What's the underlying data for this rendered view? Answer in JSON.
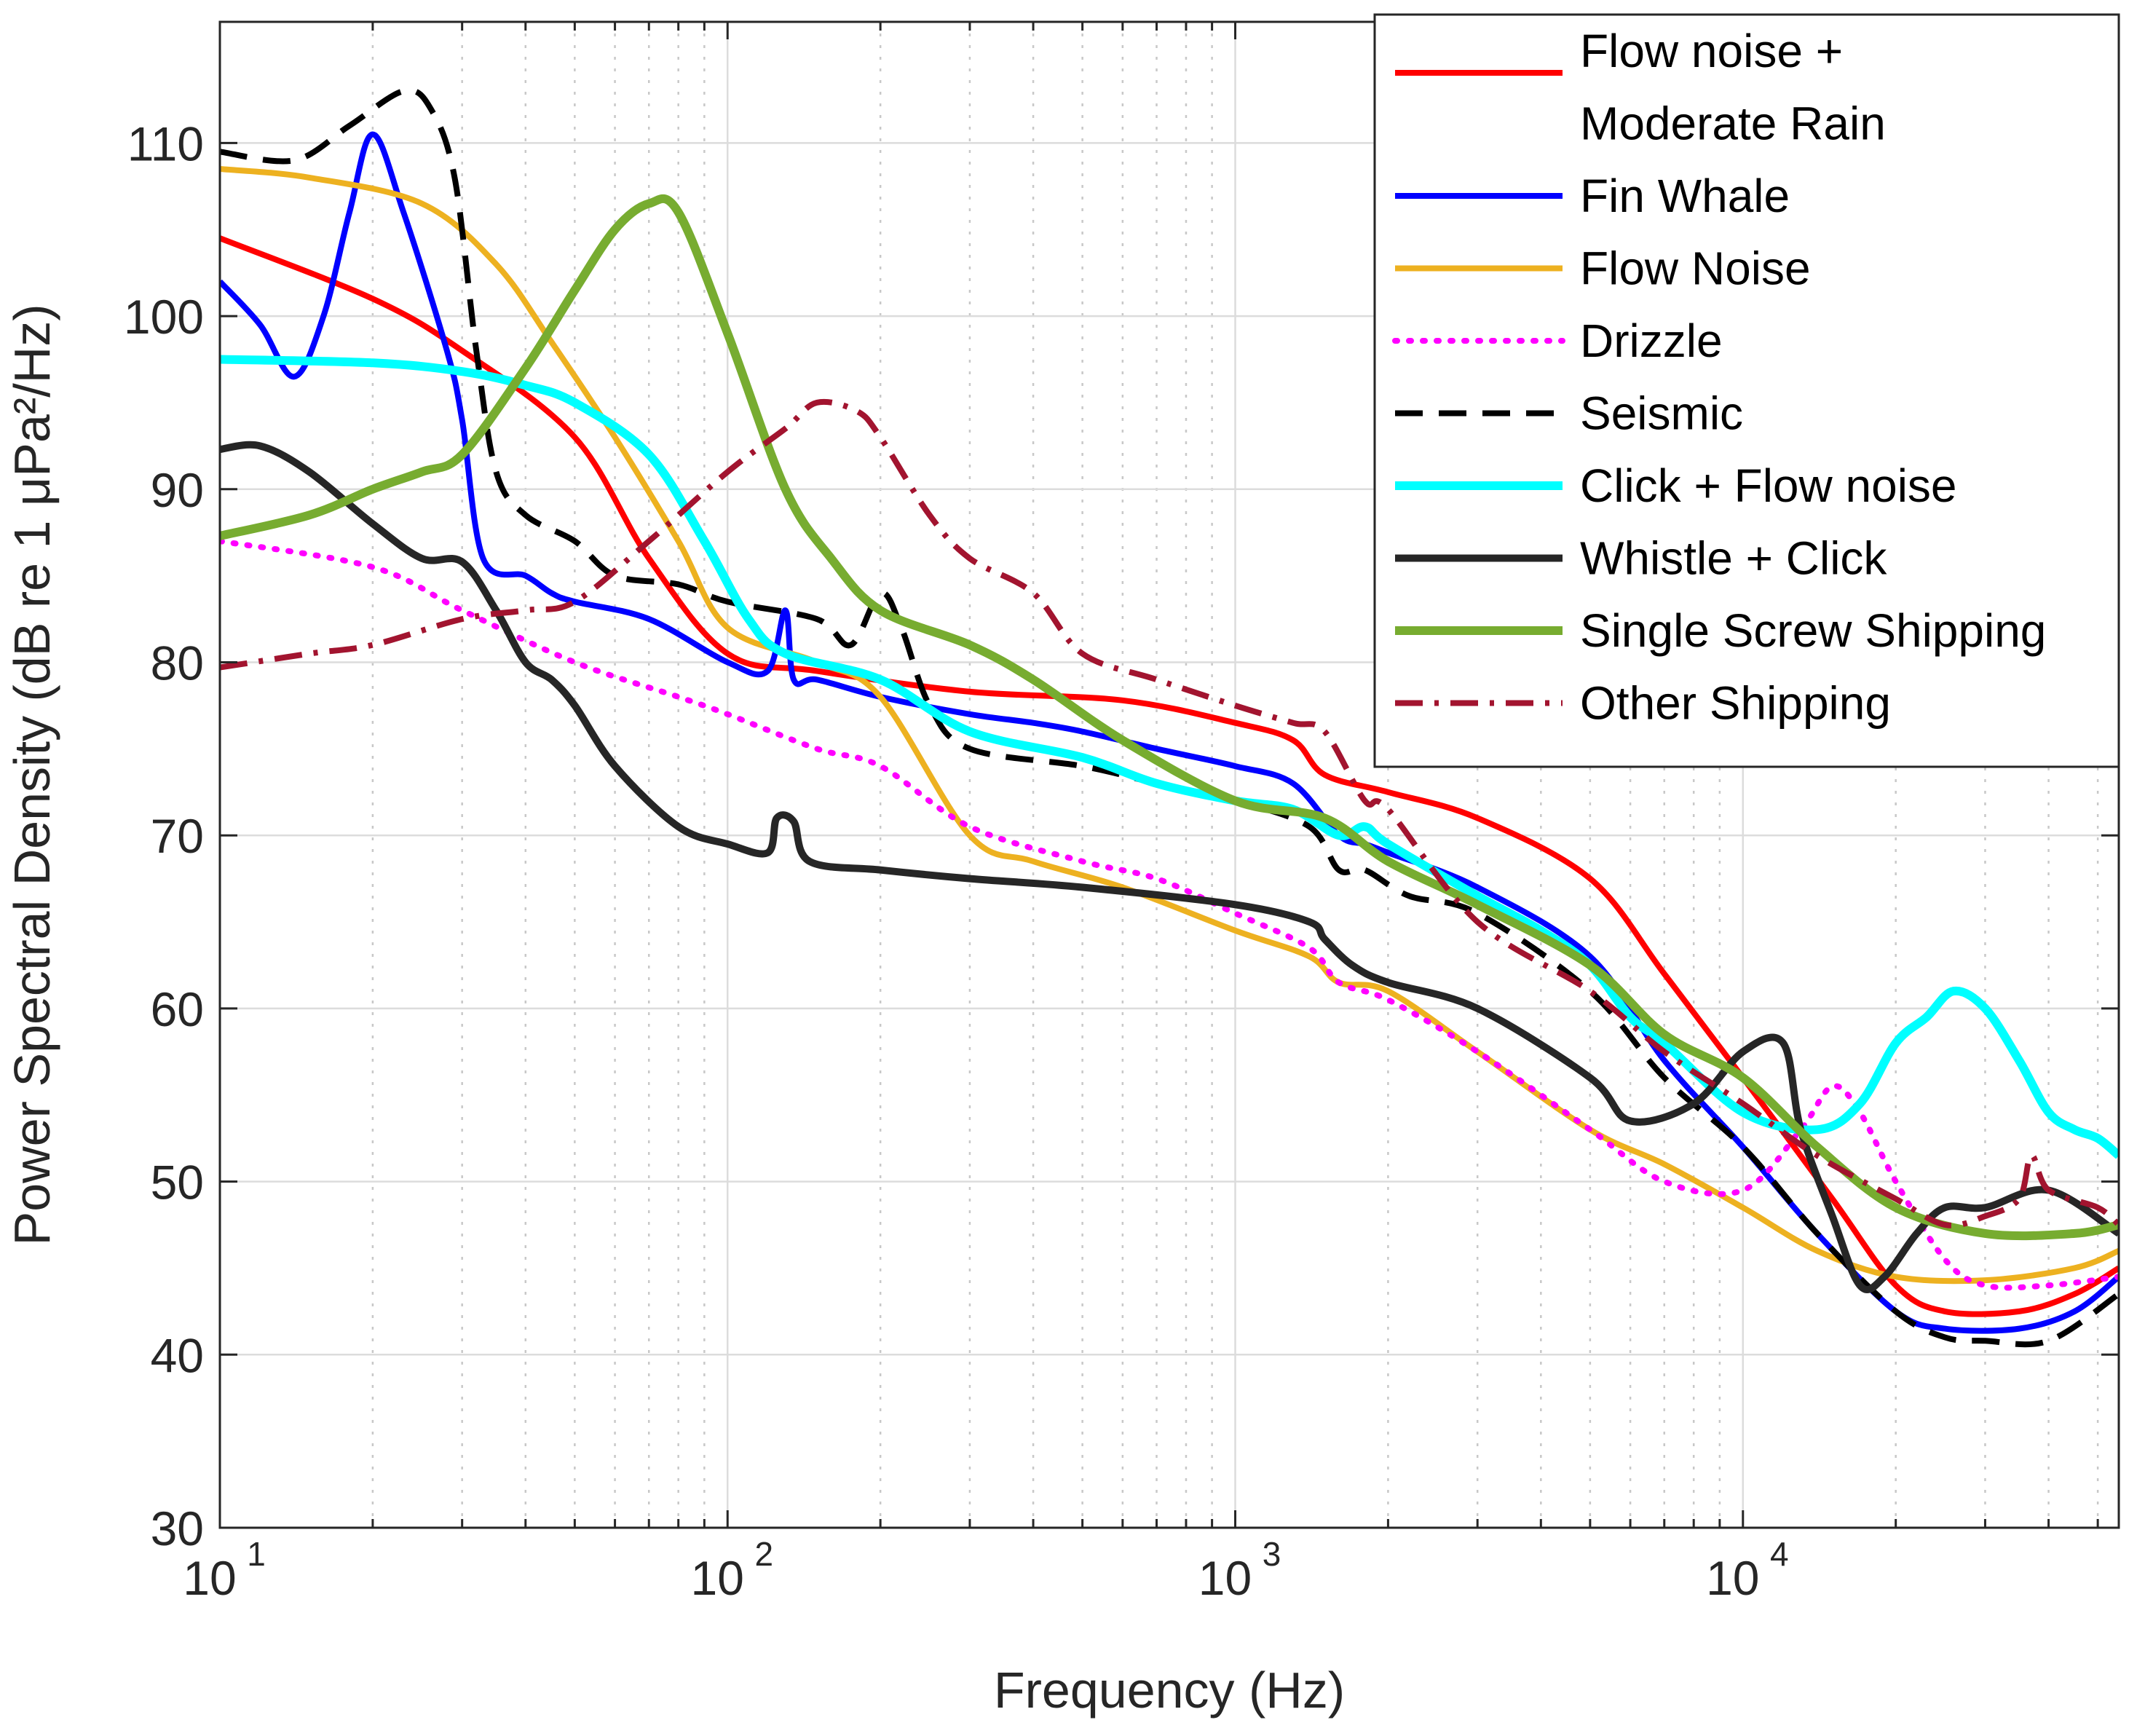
{
  "chart_data": {
    "type": "line",
    "title": "",
    "xlabel": "Frequency (Hz)",
    "ylabel": "Power Spectral Density (dB re 1 μPa²/Hz)",
    "xscale": "log",
    "xlim": [
      10,
      55000
    ],
    "ylim": [
      30,
      117
    ],
    "grid": true,
    "legend_position": "top-right",
    "y_ticks": [
      30,
      40,
      50,
      60,
      70,
      80,
      90,
      100,
      110
    ],
    "y_tick_labels": [
      "30",
      "40",
      "50",
      "60",
      "70",
      "80",
      "90",
      "100",
      "110"
    ],
    "x_ticks": [
      10,
      100,
      1000,
      10000
    ],
    "x_tick_labels": [
      {
        "base": "10",
        "exp": "1"
      },
      {
        "base": "10",
        "exp": "2"
      },
      {
        "base": "10",
        "exp": "3"
      },
      {
        "base": "10",
        "exp": "4"
      }
    ],
    "series": [
      {
        "name": "Flow noise + Moderate Rain",
        "legend_lines": [
          "Flow noise +",
          "Moderate Rain"
        ],
        "color": "#ff0000",
        "dash": "solid",
        "width": 8,
        "points": [
          [
            10,
            104.5
          ],
          [
            20,
            101
          ],
          [
            30,
            98
          ],
          [
            50,
            93
          ],
          [
            70,
            86
          ],
          [
            100,
            80.5
          ],
          [
            150,
            79.5
          ],
          [
            300,
            78.3
          ],
          [
            600,
            77.8
          ],
          [
            1000,
            76.5
          ],
          [
            1300,
            75.5
          ],
          [
            1500,
            73.5
          ],
          [
            2000,
            72.5
          ],
          [
            3000,
            71
          ],
          [
            5000,
            67.5
          ],
          [
            7000,
            62
          ],
          [
            10000,
            56
          ],
          [
            15000,
            49
          ],
          [
            20000,
            44
          ],
          [
            25000,
            42.5
          ],
          [
            35000,
            42.5
          ],
          [
            45000,
            43.5
          ],
          [
            55000,
            45
          ]
        ]
      },
      {
        "name": "Fin Whale",
        "legend_lines": [
          "Fin Whale"
        ],
        "color": "#0000ff",
        "dash": "solid",
        "width": 8,
        "points": [
          [
            10,
            102
          ],
          [
            12,
            99.5
          ],
          [
            14,
            96.5
          ],
          [
            16,
            100
          ],
          [
            18,
            106
          ],
          [
            20,
            110.5
          ],
          [
            23,
            106
          ],
          [
            28,
            98
          ],
          [
            30,
            94
          ],
          [
            33,
            86
          ],
          [
            40,
            85
          ],
          [
            45,
            84
          ],
          [
            50,
            83.5
          ],
          [
            70,
            82.5
          ],
          [
            100,
            80
          ],
          [
            120,
            79.5
          ],
          [
            130,
            83
          ],
          [
            135,
            79
          ],
          [
            150,
            79
          ],
          [
            200,
            78
          ],
          [
            300,
            77
          ],
          [
            400,
            76.5
          ],
          [
            500,
            76
          ],
          [
            700,
            75
          ],
          [
            1000,
            74
          ],
          [
            1300,
            73
          ],
          [
            1600,
            70
          ],
          [
            1800,
            69.5
          ],
          [
            2000,
            69
          ],
          [
            3000,
            67
          ],
          [
            5000,
            63
          ],
          [
            7000,
            57
          ],
          [
            10000,
            52
          ],
          [
            14000,
            47
          ],
          [
            20000,
            42.5
          ],
          [
            25000,
            41.5
          ],
          [
            35000,
            41.5
          ],
          [
            45000,
            42.5
          ],
          [
            55000,
            44.5
          ]
        ]
      },
      {
        "name": "Flow Noise",
        "legend_lines": [
          "Flow Noise"
        ],
        "color": "#edb120",
        "dash": "solid",
        "width": 8,
        "points": [
          [
            10,
            108.5
          ],
          [
            15,
            108
          ],
          [
            25,
            106.5
          ],
          [
            35,
            103
          ],
          [
            45,
            98.5
          ],
          [
            60,
            93
          ],
          [
            80,
            87
          ],
          [
            100,
            82
          ],
          [
            150,
            80
          ],
          [
            200,
            78
          ],
          [
            300,
            70
          ],
          [
            400,
            68.5
          ],
          [
            600,
            67
          ],
          [
            1000,
            64.5
          ],
          [
            1400,
            63
          ],
          [
            1600,
            61.5
          ],
          [
            2000,
            61
          ],
          [
            3000,
            57.5
          ],
          [
            5000,
            53
          ],
          [
            7000,
            51
          ],
          [
            10000,
            48.5
          ],
          [
            14000,
            46
          ],
          [
            20000,
            44.5
          ],
          [
            30000,
            44.3
          ],
          [
            45000,
            45
          ],
          [
            55000,
            46
          ]
        ]
      },
      {
        "name": "Drizzle",
        "legend_lines": [
          "Drizzle"
        ],
        "color": "#ff00ff",
        "dash": "dot",
        "width": 8,
        "points": [
          [
            10,
            87
          ],
          [
            20,
            85.5
          ],
          [
            30,
            83
          ],
          [
            50,
            80
          ],
          [
            80,
            78
          ],
          [
            100,
            77
          ],
          [
            150,
            75
          ],
          [
            200,
            74
          ],
          [
            300,
            70.5
          ],
          [
            500,
            68.5
          ],
          [
            700,
            67.5
          ],
          [
            1000,
            65.5
          ],
          [
            1400,
            63.5
          ],
          [
            1600,
            61.5
          ],
          [
            2000,
            60.5
          ],
          [
            3000,
            57.5
          ],
          [
            5000,
            53
          ],
          [
            7000,
            50
          ],
          [
            10000,
            49.5
          ],
          [
            13000,
            53
          ],
          [
            15000,
            55.5
          ],
          [
            17000,
            54
          ],
          [
            20000,
            50
          ],
          [
            25000,
            45.5
          ],
          [
            30000,
            44
          ],
          [
            40000,
            44
          ],
          [
            55000,
            44.5
          ]
        ]
      },
      {
        "name": "Seismic",
        "legend_lines": [
          "Seismic"
        ],
        "color": "#000000",
        "dash": "dash",
        "width": 8,
        "points": [
          [
            10,
            109.5
          ],
          [
            14,
            109
          ],
          [
            18,
            111
          ],
          [
            23,
            113
          ],
          [
            26,
            112
          ],
          [
            29,
            108
          ],
          [
            32,
            98
          ],
          [
            35,
            91
          ],
          [
            40,
            88.5
          ],
          [
            50,
            87
          ],
          [
            60,
            85
          ],
          [
            80,
            84.5
          ],
          [
            100,
            83.5
          ],
          [
            150,
            82.5
          ],
          [
            175,
            81
          ],
          [
            200,
            84
          ],
          [
            220,
            82
          ],
          [
            250,
            77.5
          ],
          [
            300,
            75
          ],
          [
            500,
            74
          ],
          [
            700,
            73
          ],
          [
            1000,
            72
          ],
          [
            1400,
            70.5
          ],
          [
            1600,
            68
          ],
          [
            1800,
            68
          ],
          [
            2200,
            66.5
          ],
          [
            3000,
            65.5
          ],
          [
            5000,
            61
          ],
          [
            7000,
            56
          ],
          [
            10000,
            52
          ],
          [
            14000,
            47
          ],
          [
            20000,
            42.5
          ],
          [
            25000,
            41
          ],
          [
            30000,
            40.8
          ],
          [
            40000,
            40.8
          ],
          [
            55000,
            43.5
          ]
        ]
      },
      {
        "name": "Click + Flow noise",
        "legend_lines": [
          "Click + Flow noise"
        ],
        "color": "#00ffff",
        "dash": "solid",
        "width": 12,
        "points": [
          [
            10,
            97.5
          ],
          [
            20,
            97.3
          ],
          [
            30,
            96.8
          ],
          [
            40,
            96
          ],
          [
            50,
            95
          ],
          [
            70,
            92
          ],
          [
            90,
            87
          ],
          [
            110,
            82.5
          ],
          [
            130,
            80.5
          ],
          [
            200,
            79
          ],
          [
            300,
            76
          ],
          [
            500,
            74.5
          ],
          [
            700,
            73
          ],
          [
            1000,
            72
          ],
          [
            1300,
            71.5
          ],
          [
            1600,
            70
          ],
          [
            1800,
            70.5
          ],
          [
            2000,
            69.5
          ],
          [
            3000,
            66.5
          ],
          [
            4000,
            64.5
          ],
          [
            5000,
            62.5
          ],
          [
            6000,
            59.5
          ],
          [
            7000,
            58
          ],
          [
            10000,
            54
          ],
          [
            14000,
            53
          ],
          [
            17000,
            54.5
          ],
          [
            20000,
            58
          ],
          [
            23000,
            59.5
          ],
          [
            26000,
            61
          ],
          [
            30000,
            60
          ],
          [
            35000,
            57
          ],
          [
            40000,
            54
          ],
          [
            45000,
            53
          ],
          [
            50000,
            52.5
          ],
          [
            55000,
            51.5
          ]
        ]
      },
      {
        "name": "Whistle + Click",
        "legend_lines": [
          " Whistle + Click"
        ],
        "color": "#262626",
        "dash": "solid",
        "width": 10,
        "points": [
          [
            10,
            92.3
          ],
          [
            12,
            92.5
          ],
          [
            15,
            91
          ],
          [
            20,
            88
          ],
          [
            25,
            86
          ],
          [
            30,
            85.8
          ],
          [
            35,
            83
          ],
          [
            40,
            80
          ],
          [
            45,
            79
          ],
          [
            50,
            77.5
          ],
          [
            60,
            74
          ],
          [
            80,
            70.5
          ],
          [
            100,
            69.5
          ],
          [
            120,
            69
          ],
          [
            125,
            71
          ],
          [
            135,
            70.8
          ],
          [
            145,
            68.5
          ],
          [
            200,
            68
          ],
          [
            300,
            67.5
          ],
          [
            500,
            67
          ],
          [
            1000,
            66
          ],
          [
            1400,
            65
          ],
          [
            1500,
            64
          ],
          [
            1700,
            62.5
          ],
          [
            2000,
            61.5
          ],
          [
            3000,
            60
          ],
          [
            5000,
            56
          ],
          [
            6000,
            53.5
          ],
          [
            8000,
            54.5
          ],
          [
            10000,
            57.5
          ],
          [
            12000,
            58
          ],
          [
            13000,
            53
          ],
          [
            15000,
            48
          ],
          [
            17000,
            44
          ],
          [
            19000,
            44.5
          ],
          [
            22000,
            47
          ],
          [
            25000,
            48.5
          ],
          [
            30000,
            48.5
          ],
          [
            40000,
            49.5
          ],
          [
            55000,
            47
          ]
        ]
      },
      {
        "name": "Single Screw Shipping",
        "legend_lines": [
          "Single Screw Shipping"
        ],
        "color": "#77ac30",
        "dash": "solid",
        "width": 12,
        "points": [
          [
            10,
            87.3
          ],
          [
            15,
            88.5
          ],
          [
            20,
            90
          ],
          [
            25,
            91
          ],
          [
            30,
            92
          ],
          [
            40,
            97
          ],
          [
            50,
            101.5
          ],
          [
            60,
            105
          ],
          [
            70,
            106.5
          ],
          [
            80,
            106
          ],
          [
            100,
            99
          ],
          [
            130,
            90
          ],
          [
            160,
            86
          ],
          [
            200,
            83
          ],
          [
            300,
            81
          ],
          [
            400,
            79
          ],
          [
            600,
            75.5
          ],
          [
            1000,
            72
          ],
          [
            1500,
            71
          ],
          [
            2000,
            68.5
          ],
          [
            3000,
            66
          ],
          [
            5000,
            62.5
          ],
          [
            7000,
            58.5
          ],
          [
            10000,
            56
          ],
          [
            14000,
            52
          ],
          [
            20000,
            48.5
          ],
          [
            30000,
            47
          ],
          [
            45000,
            47
          ],
          [
            55000,
            47.5
          ]
        ]
      },
      {
        "name": "Other Shipping",
        "legend_lines": [
          "Other Shipping"
        ],
        "color": "#a2142f",
        "dash": "dashdot",
        "width": 8,
        "points": [
          [
            10,
            79.7
          ],
          [
            15,
            80.5
          ],
          [
            20,
            81
          ],
          [
            30,
            82.5
          ],
          [
            40,
            83
          ],
          [
            50,
            83.5
          ],
          [
            70,
            87
          ],
          [
            100,
            91
          ],
          [
            130,
            93.5
          ],
          [
            150,
            95
          ],
          [
            180,
            94.5
          ],
          [
            200,
            93
          ],
          [
            250,
            88.5
          ],
          [
            300,
            86
          ],
          [
            400,
            84
          ],
          [
            500,
            80.5
          ],
          [
            700,
            79
          ],
          [
            1000,
            77.5
          ],
          [
            1300,
            76.5
          ],
          [
            1500,
            76
          ],
          [
            1800,
            72
          ],
          [
            2000,
            71.5
          ],
          [
            3000,
            65
          ],
          [
            5000,
            61
          ],
          [
            7000,
            57.5
          ],
          [
            10000,
            54.5
          ],
          [
            14000,
            51.5
          ],
          [
            20000,
            49
          ],
          [
            25000,
            47.5
          ],
          [
            30000,
            48
          ],
          [
            35000,
            49
          ],
          [
            37000,
            51.5
          ],
          [
            40000,
            49.5
          ],
          [
            50000,
            48.5
          ],
          [
            55000,
            47.5
          ]
        ]
      }
    ]
  }
}
